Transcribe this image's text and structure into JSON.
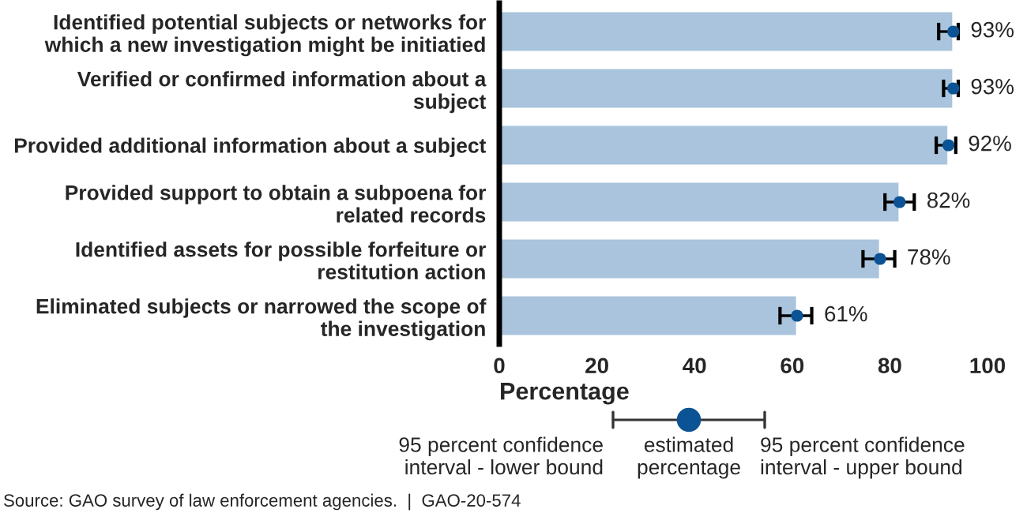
{
  "chart_data": {
    "type": "bar",
    "orientation": "horizontal",
    "categories": [
      "Identified potential subjects or networks for\nwhich a new investigation might be initiatied",
      "Verified or confirmed information about a\nsubject",
      "Provided additional information about a subject",
      "Provided support to obtain a subpoena for\nrelated records",
      "Identified assets for possible forfeiture or\nrestitution action",
      "Eliminated subjects or narrowed the scope of\nthe investigation"
    ],
    "series": [
      {
        "color": "#a9c4dc",
        "values": [
          93,
          93,
          92,
          82,
          78,
          61
        ],
        "errors": [
          [
            90,
            94
          ],
          [
            91,
            94
          ],
          [
            89.5,
            93.5
          ],
          [
            79,
            85
          ],
          [
            74.5,
            81
          ],
          [
            57.5,
            64
          ]
        ],
        "value_labels": [
          "93%",
          "93%",
          "92%",
          "82%",
          "78%",
          "61%"
        ]
      },
      {
        "type": "scatter",
        "color": "#0b5394",
        "values": [
          93,
          93,
          92,
          82,
          78,
          61
        ]
      }
    ],
    "marker": "circle",
    "xlim": [
      0,
      100
    ],
    "xticks": [
      0,
      20,
      40,
      60,
      80,
      100
    ],
    "xlabel": "Percentage",
    "grid": false,
    "annotations": [
      "95 percent confidence\ninterval - lower bound",
      "estimated\npercentage",
      "95 percent confidence\ninterval - upper bound",
      "Source: GAO survey of law enforcement agencies.  |  GAO-20-574"
    ]
  }
}
